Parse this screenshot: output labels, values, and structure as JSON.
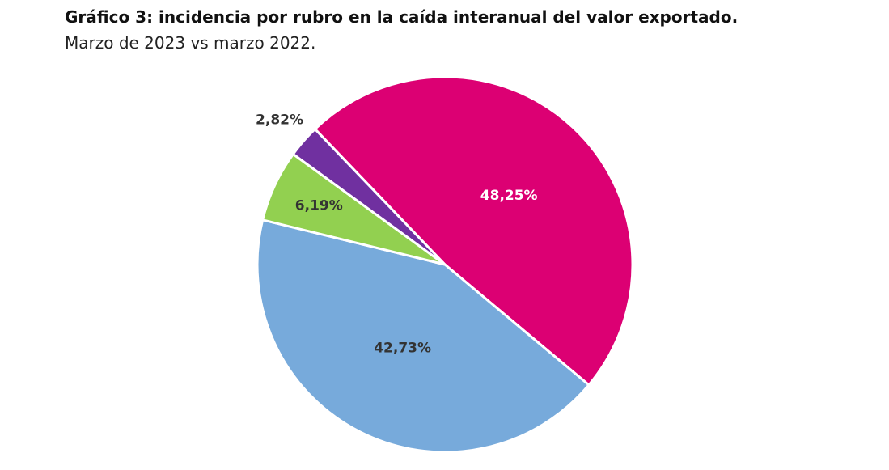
{
  "chart_data": {
    "type": "pie",
    "title": "Gráfico 3: incidencia por rubro en la caída interanual del valor exportado.",
    "subtitle": "Marzo de 2023 vs marzo 2022.",
    "values": [
      48.25,
      42.73,
      6.19,
      2.82
    ],
    "value_labels": [
      "48,25%",
      "42,73%",
      "6,19%",
      "2,82%"
    ],
    "colors": [
      "#dc0073",
      "#77aadb",
      "#92d050",
      "#7030a0"
    ],
    "label_colors": [
      "#ffffff",
      "#333333",
      "#333333",
      "#333333"
    ]
  }
}
